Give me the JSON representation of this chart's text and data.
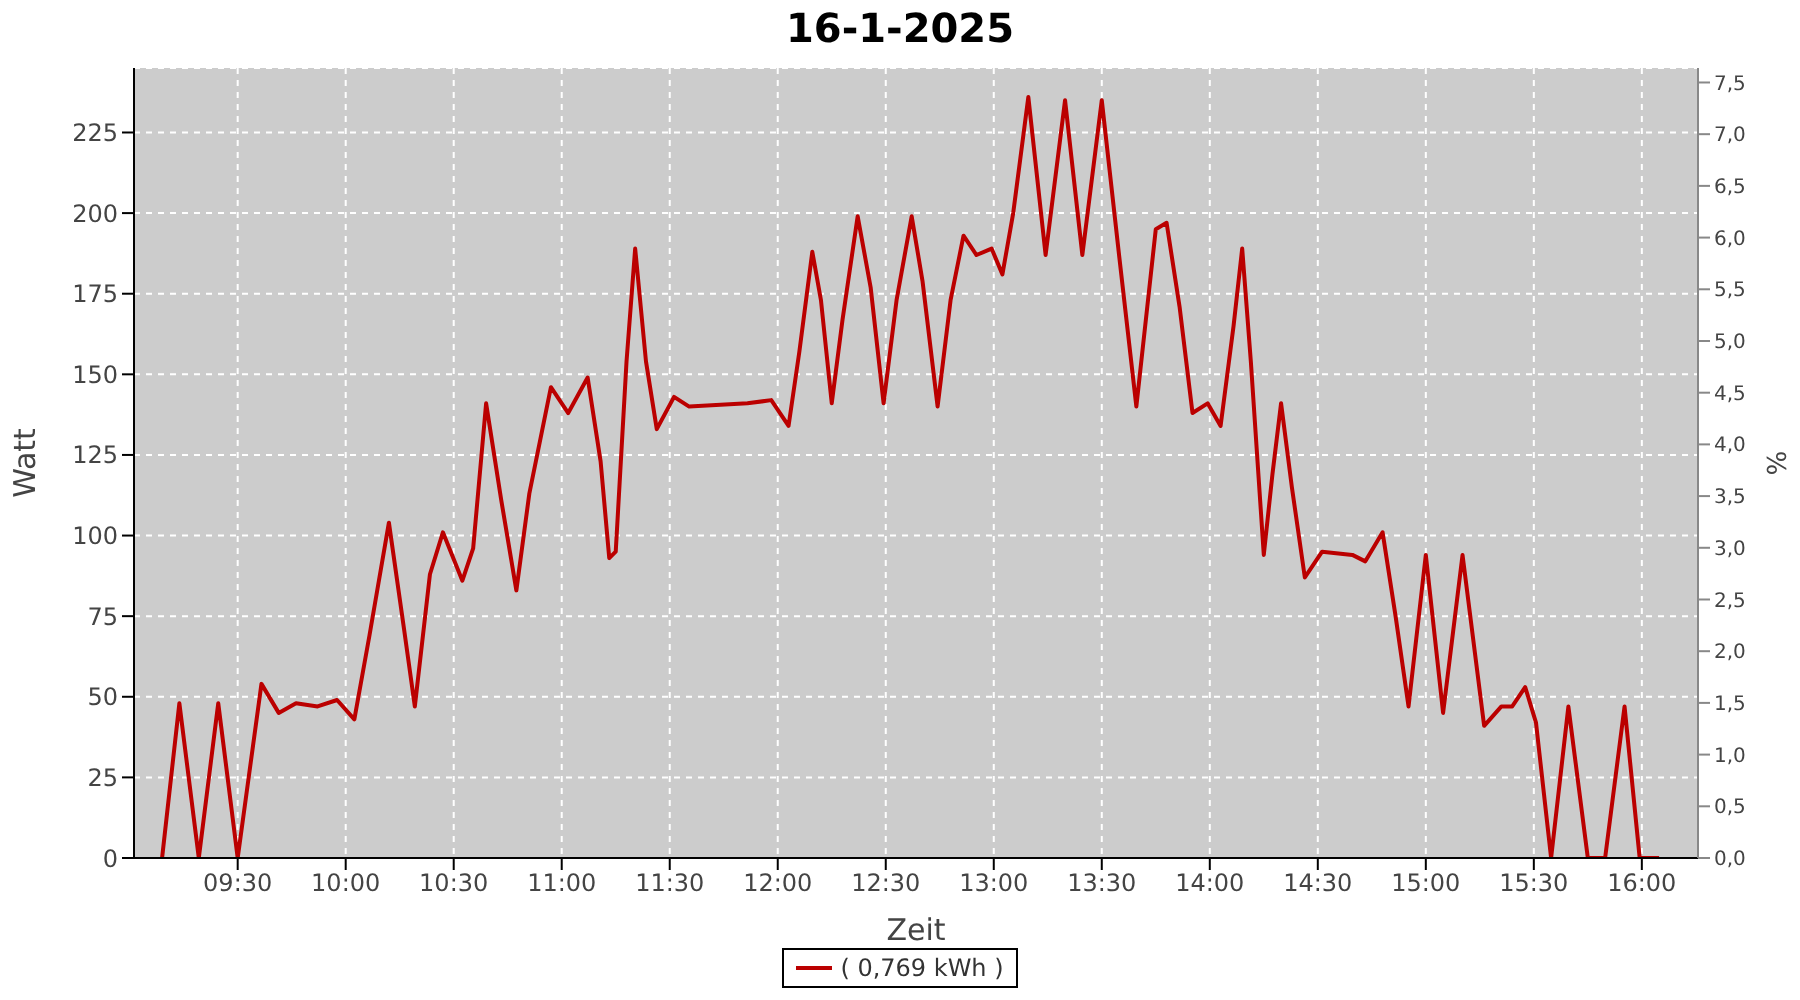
{
  "chart_data": {
    "type": "line",
    "title": "16-1-2025",
    "xlabel": "Zeit",
    "ylabel": "Watt",
    "y2label": "%",
    "x": [
      9.15,
      9.23,
      9.32,
      9.41,
      9.5,
      9.61,
      9.69,
      9.77,
      9.87,
      9.96,
      10.04,
      10.11,
      10.2,
      10.27,
      10.32,
      10.39,
      10.45,
      10.54,
      10.59,
      10.65,
      10.72,
      10.79,
      10.85,
      10.95,
      11.03,
      11.12,
      11.18,
      11.22,
      11.25,
      11.3,
      11.34,
      11.39,
      11.44,
      11.52,
      11.59,
      11.86,
      11.97,
      12.05,
      12.1,
      12.16,
      12.2,
      12.25,
      12.3,
      12.37,
      12.43,
      12.49,
      12.55,
      12.62,
      12.67,
      12.74,
      12.8,
      12.86,
      12.92,
      12.99,
      13.04,
      13.09,
      13.16,
      13.24,
      13.33,
      13.41,
      13.5,
      13.58,
      13.66,
      13.75,
      13.8,
      13.86,
      13.92,
      13.99,
      14.05,
      14.11,
      14.15,
      14.19,
      14.25,
      14.29,
      14.33,
      14.38,
      14.44,
      14.52,
      14.66,
      14.72,
      14.8,
      14.86,
      14.92,
      15.0,
      15.08,
      15.17,
      15.27,
      15.35,
      15.4,
      15.46,
      15.51,
      15.58,
      15.66,
      15.75,
      15.83,
      15.92,
      15.99,
      16.08
    ],
    "series": [
      {
        "name": "( 0,769 kWh )",
        "color": "#bb0000",
        "values": [
          0,
          48,
          0,
          48,
          0,
          54,
          45,
          48,
          47,
          49,
          43,
          69,
          104,
          71,
          47,
          88,
          101,
          86,
          96,
          141,
          111,
          83,
          113,
          146,
          138,
          149,
          123,
          93,
          95,
          154,
          189,
          154,
          133,
          143,
          140,
          141,
          142,
          134,
          157,
          188,
          173,
          141,
          167,
          199,
          177,
          141,
          173,
          199,
          179,
          140,
          173,
          193,
          187,
          189,
          181,
          200,
          236,
          187,
          235,
          187,
          235,
          187,
          140,
          195,
          197,
          171,
          138,
          141,
          134,
          165,
          189,
          154,
          94,
          119,
          141,
          115,
          87,
          95,
          94,
          92,
          101,
          75,
          47,
          94,
          45,
          94,
          41,
          47,
          47,
          53,
          42,
          0,
          47,
          0,
          0,
          47,
          0,
          0
        ]
      }
    ],
    "xlim": [
      9.02,
      16.26
    ],
    "xticks": [
      {
        "value": 9.5,
        "label": "09:30"
      },
      {
        "value": 10,
        "label": "10:00"
      },
      {
        "value": 10.5,
        "label": "10:30"
      },
      {
        "value": 11,
        "label": "11:00"
      },
      {
        "value": 11.5,
        "label": "11:30"
      },
      {
        "value": 12,
        "label": "12:00"
      },
      {
        "value": 12.5,
        "label": "12:30"
      },
      {
        "value": 13,
        "label": "13:00"
      },
      {
        "value": 13.5,
        "label": "13:30"
      },
      {
        "value": 14,
        "label": "14:00"
      },
      {
        "value": 14.5,
        "label": "14:30"
      },
      {
        "value": 15,
        "label": "15:00"
      },
      {
        "value": 15.5,
        "label": "15:30"
      },
      {
        "value": 16,
        "label": "16:00"
      }
    ],
    "ylim": [
      0,
      245
    ],
    "yticks": [
      0,
      25,
      50,
      75,
      100,
      125,
      150,
      175,
      200,
      225
    ],
    "y2lim": [
      0,
      7.64
    ],
    "y2ticks": [
      {
        "value": 0,
        "label": "0,0"
      },
      {
        "value": 0.5,
        "label": "0,5"
      },
      {
        "value": 1,
        "label": "1,0"
      },
      {
        "value": 1.5,
        "label": "1,5"
      },
      {
        "value": 2,
        "label": "2,0"
      },
      {
        "value": 2.5,
        "label": "2,5"
      },
      {
        "value": 3,
        "label": "3,0"
      },
      {
        "value": 3.5,
        "label": "3,5"
      },
      {
        "value": 4,
        "label": "4,0"
      },
      {
        "value": 4.5,
        "label": "4,5"
      },
      {
        "value": 5,
        "label": "5,0"
      },
      {
        "value": 5.5,
        "label": "5,5"
      },
      {
        "value": 6,
        "label": "6,0"
      },
      {
        "value": 6.5,
        "label": "6,5"
      },
      {
        "value": 7,
        "label": "7,0"
      },
      {
        "value": 7.5,
        "label": "7,5"
      }
    ],
    "grid": true,
    "legend": "bottom",
    "marker": "none",
    "line_style": "solid"
  }
}
